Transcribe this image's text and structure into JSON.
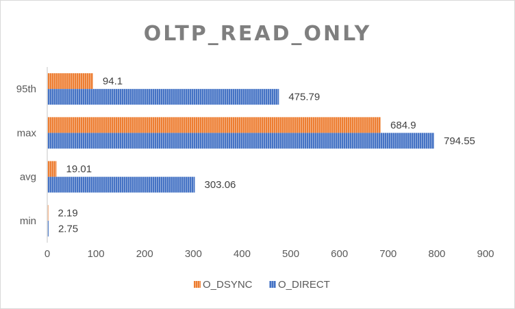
{
  "chart_data": {
    "type": "bar",
    "orientation": "horizontal",
    "title": "OLTP_READ_ONLY",
    "categories": [
      "95th",
      "max",
      "avg",
      "min"
    ],
    "series": [
      {
        "name": "O_DSYNC",
        "values": [
          94.1,
          684.9,
          19.01,
          2.19
        ],
        "labels": [
          "94.1",
          "684.9",
          "19.01",
          "2.19"
        ],
        "color": "#ED7D31",
        "pattern": "vertical-stripes"
      },
      {
        "name": "O_DIRECT",
        "values": [
          475.79,
          794.55,
          303.06,
          2.75
        ],
        "labels": [
          "475.79",
          "794.55",
          "303.06",
          "2.75"
        ],
        "color": "#4472C4",
        "pattern": "vertical-stripes"
      }
    ],
    "x_ticks": [
      "0",
      "100",
      "200",
      "300",
      "400",
      "500",
      "600",
      "700",
      "800",
      "900"
    ],
    "xlim": [
      0,
      900
    ],
    "grid": false,
    "legend_position": "bottom"
  }
}
